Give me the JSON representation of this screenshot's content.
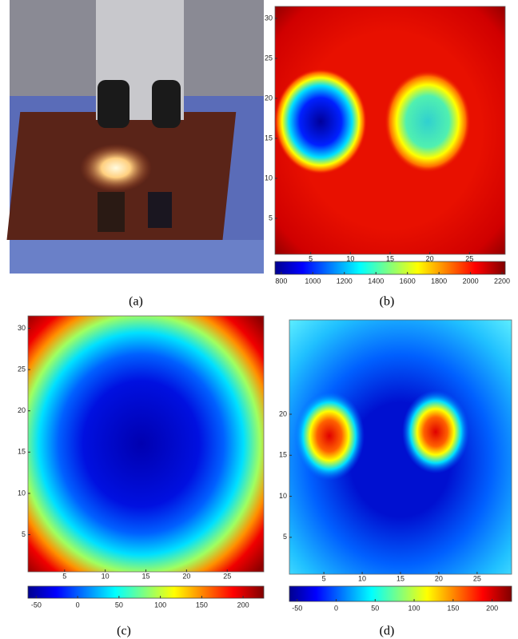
{
  "panels": [
    {
      "caption": "(a)"
    },
    {
      "caption": "(b)",
      "xlim": [
        0.5,
        29.5
      ],
      "ylim": [
        0.5,
        31.5
      ],
      "xticks": [
        5,
        10,
        15,
        20,
        25
      ],
      "yticks": [
        5,
        10,
        15,
        20,
        25,
        30
      ],
      "clim": [
        760,
        2220
      ],
      "colorbar_ticks": [
        800,
        1000,
        1200,
        1400,
        1600,
        1800,
        2000,
        2200
      ]
    },
    {
      "caption": "(c)",
      "xlim": [
        0.5,
        29.5
      ],
      "ylim": [
        0.5,
        31.5
      ],
      "xticks": [
        5,
        10,
        15,
        20,
        25
      ],
      "yticks": [
        5,
        10,
        15,
        20,
        25,
        30
      ],
      "clim": [
        -60,
        225
      ],
      "colorbar_ticks": [
        -50,
        0,
        50,
        100,
        150,
        200
      ]
    },
    {
      "caption": "(d)",
      "xlim": [
        0.5,
        29.5
      ],
      "ylim": [
        0.5,
        31.5
      ],
      "xticks": [
        5,
        10,
        15,
        20,
        25
      ],
      "yticks": [
        5,
        10,
        15,
        20
      ],
      "clim": [
        -60,
        225
      ],
      "colorbar_ticks": [
        -50,
        0,
        50,
        100,
        150,
        200
      ]
    }
  ]
}
